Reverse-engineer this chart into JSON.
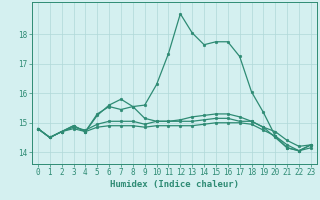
{
  "xlabel": "Humidex (Indice chaleur)",
  "x_values": [
    0,
    1,
    2,
    3,
    4,
    5,
    6,
    7,
    8,
    9,
    10,
    11,
    12,
    13,
    14,
    15,
    16,
    17,
    18,
    19,
    20,
    21,
    22,
    23
  ],
  "line1": [
    14.8,
    14.5,
    14.7,
    14.8,
    14.7,
    14.85,
    14.9,
    14.9,
    14.9,
    14.85,
    14.9,
    14.9,
    14.9,
    14.9,
    14.95,
    15.0,
    15.0,
    15.0,
    14.95,
    14.75,
    14.55,
    14.25,
    14.05,
    14.15
  ],
  "line2": [
    14.8,
    14.5,
    14.7,
    14.85,
    14.75,
    14.95,
    15.05,
    15.05,
    15.05,
    14.95,
    15.05,
    15.05,
    15.05,
    15.05,
    15.1,
    15.15,
    15.15,
    15.05,
    15.05,
    14.85,
    14.7,
    14.4,
    14.2,
    14.25
  ],
  "line3": [
    14.8,
    14.5,
    14.7,
    14.9,
    14.7,
    15.3,
    15.55,
    15.45,
    15.55,
    15.6,
    16.3,
    17.35,
    18.7,
    18.05,
    17.65,
    17.75,
    17.75,
    17.25,
    16.05,
    15.35,
    14.55,
    14.15,
    14.05,
    14.25
  ],
  "line4": [
    14.8,
    14.5,
    14.7,
    14.9,
    14.7,
    15.25,
    15.6,
    15.8,
    15.55,
    15.15,
    15.05,
    15.05,
    15.1,
    15.2,
    15.25,
    15.3,
    15.3,
    15.2,
    15.05,
    14.85,
    14.5,
    14.15,
    14.05,
    14.25
  ],
  "line_color": "#2e8b74",
  "bg_color": "#d4f0f0",
  "grid_color": "#b0d8d8",
  "y_min": 13.6,
  "y_max": 19.1,
  "y_ticks": [
    14,
    15,
    16,
    17,
    18
  ],
  "tick_fontsize": 5.5,
  "label_fontsize": 6.5
}
